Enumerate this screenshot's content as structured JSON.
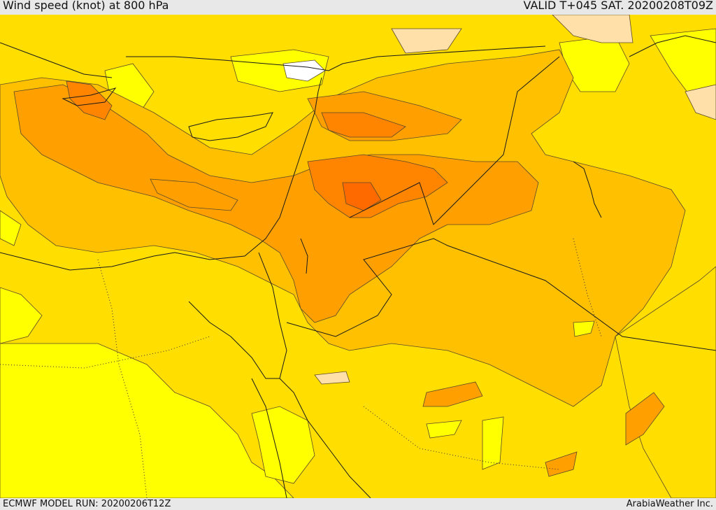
{
  "header": {
    "title": "Wind speed (knot) at 800 hPa",
    "valid": "VALID T+045 SAT. 20200208T09Z"
  },
  "footer": {
    "model_run": "ECMWF MODEL RUN: 20200206T12Z",
    "credit": "ArabiaWeather Inc."
  },
  "colors": {
    "low": "#ffff00",
    "mid_low": "#ffde00",
    "mid": "#ffc000",
    "mid_high": "#ffa000",
    "high": "#ff8400",
    "very_high": "#ff6a00",
    "calm_pale": "#ffe0a8",
    "calm_white": "#ffffff",
    "contour": "#5a4a2a",
    "border": "#1a1a1a"
  }
}
